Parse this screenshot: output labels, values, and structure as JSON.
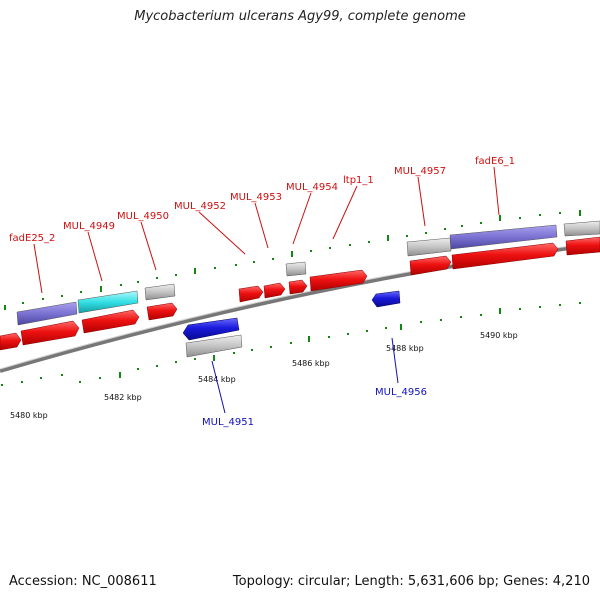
{
  "title": "Mycobacterium ulcerans Agy99, complete genome",
  "footer": {
    "accession": "Accession: NC_008611",
    "info": "Topology: circular; Length: 5,631,606 bp; Genes: 4,210"
  },
  "colors": {
    "forward_cds": "#ee1111",
    "reverse_cds": "#1a1adc",
    "grey_feature": "#c4c4c4",
    "purple_feature": "#7b72d2",
    "cyan_feature": "#33e0e6",
    "backbone": "#777777",
    "tick": "#118811",
    "forward_label": "#cc1111",
    "reverse_label": "#1111bb"
  },
  "kbp_labels": [
    "5480 kbp",
    "5482 kbp",
    "5484 kbp",
    "5486 kbp",
    "5488 kbp",
    "5490 kbp"
  ],
  "forward_labels": [
    "fadE25_2",
    "MUL_4949",
    "MUL_4950",
    "MUL_4952",
    "MUL_4953",
    "MUL_4954",
    "ltp1_1",
    "MUL_4957",
    "fadE6_1"
  ],
  "reverse_labels": [
    "MUL_4951",
    "MUL_4956"
  ]
}
